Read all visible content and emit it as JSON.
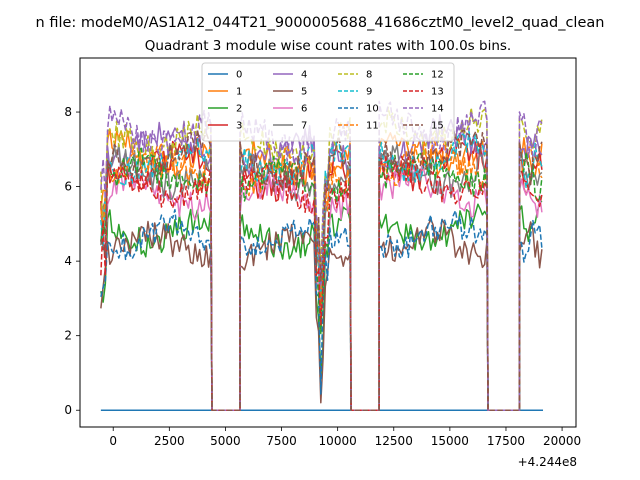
{
  "chart_data": {
    "type": "line",
    "suptitle": "n file: modeM0/AS1A12_044T21_9000005688_41686cztM0_level2_quad_clean",
    "title": "Quadrant 3 module wise count rates with 100.0s bins.",
    "xlabel": "",
    "ylabel": "",
    "x_offset_label": "+4.244e8",
    "xlim": [
      -1480,
      20620
    ],
    "ylim": [
      -0.45,
      9.45
    ],
    "x_ticks": [
      0,
      2500,
      5000,
      7500,
      10000,
      12500,
      15000,
      17500,
      20000
    ],
    "x_tick_labels": [
      "0",
      "2500",
      "5000",
      "7500",
      "10000",
      "12500",
      "15000",
      "17500",
      "20000"
    ],
    "y_ticks": [
      0,
      2,
      4,
      6,
      8
    ],
    "y_tick_labels": [
      "0",
      "2",
      "4",
      "6",
      "8"
    ],
    "grid": false,
    "legend": {
      "placement": "top-center",
      "columns": 4
    },
    "x_range": [
      -550,
      19150
    ],
    "gaps": [
      [
        4400,
        5650
      ],
      [
        10600,
        11850
      ],
      [
        16700,
        18100
      ]
    ],
    "series": [
      {
        "name": "0",
        "color": "#1f77b4",
        "style": "solid",
        "segments": [
          [
            -550,
            19150,
            0
          ]
        ]
      },
      {
        "name": "1",
        "color": "#ff7f0e",
        "style": "solid",
        "segments": [
          [
            -550,
            4400,
            6.9
          ],
          [
            5650,
            10600,
            6.6
          ],
          [
            11850,
            16700,
            6.9
          ],
          [
            18100,
            19150,
            6.8
          ]
        ]
      },
      {
        "name": "2",
        "color": "#2ca02c",
        "style": "solid",
        "segments": [
          [
            -550,
            4400,
            4.8
          ],
          [
            5650,
            10600,
            4.7
          ],
          [
            11850,
            16700,
            4.9
          ],
          [
            18100,
            19150,
            4.9
          ]
        ]
      },
      {
        "name": "3",
        "color": "#d62728",
        "style": "solid",
        "segments": [
          [
            -550,
            4400,
            6.6
          ],
          [
            5650,
            10600,
            6.3
          ],
          [
            11850,
            16700,
            6.6
          ],
          [
            18100,
            19150,
            6.5
          ]
        ]
      },
      {
        "name": "4",
        "color": "#9467bd",
        "style": "solid",
        "segments": [
          [
            -550,
            4400,
            7.1
          ],
          [
            5650,
            10600,
            6.9
          ],
          [
            11850,
            16700,
            7.2
          ],
          [
            18100,
            19150,
            7.0
          ]
        ]
      },
      {
        "name": "5",
        "color": "#8c564b",
        "style": "solid",
        "segments": [
          [
            -550,
            4400,
            4.4
          ],
          [
            5650,
            10600,
            4.3
          ],
          [
            11850,
            16700,
            4.5
          ],
          [
            18100,
            19150,
            4.4
          ]
        ]
      },
      {
        "name": "6",
        "color": "#e377c2",
        "style": "solid",
        "segments": [
          [
            -550,
            4400,
            5.8
          ],
          [
            5650,
            10600,
            5.7
          ],
          [
            11850,
            16700,
            5.9
          ],
          [
            18100,
            19150,
            5.8
          ]
        ]
      },
      {
        "name": "7",
        "color": "#7f7f7f",
        "style": "solid",
        "segments": [
          [
            -550,
            4400,
            6.4
          ],
          [
            5650,
            10600,
            6.2
          ],
          [
            11850,
            16700,
            6.4
          ],
          [
            18100,
            19150,
            6.3
          ]
        ]
      },
      {
        "name": "8",
        "color": "#bcbd22",
        "style": "dashed",
        "segments": [
          [
            -550,
            4400,
            7.3
          ],
          [
            5650,
            10600,
            7.1
          ],
          [
            11850,
            16700,
            7.5
          ],
          [
            18100,
            19150,
            7.3
          ]
        ]
      },
      {
        "name": "9",
        "color": "#17becf",
        "style": "dashed",
        "segments": [
          [
            -550,
            4400,
            6.7
          ],
          [
            5650,
            10600,
            6.6
          ],
          [
            11850,
            16700,
            6.8
          ],
          [
            18100,
            19150,
            6.7
          ]
        ]
      },
      {
        "name": "10",
        "color": "#1f77b4",
        "style": "dashed",
        "segments": [
          [
            -550,
            4400,
            4.7
          ],
          [
            5650,
            10600,
            4.6
          ],
          [
            11850,
            16700,
            4.7
          ],
          [
            18100,
            19150,
            4.6
          ]
        ]
      },
      {
        "name": "11",
        "color": "#ff7f0e",
        "style": "dashed",
        "segments": [
          [
            -550,
            4400,
            6.5
          ],
          [
            5650,
            10600,
            6.4
          ],
          [
            11850,
            16700,
            6.6
          ],
          [
            18100,
            19150,
            6.5
          ]
        ]
      },
      {
        "name": "12",
        "color": "#2ca02c",
        "style": "dashed",
        "segments": [
          [
            -550,
            4400,
            6.3
          ],
          [
            5650,
            10600,
            6.1
          ],
          [
            11850,
            16700,
            6.4
          ],
          [
            18100,
            19150,
            6.2
          ]
        ]
      },
      {
        "name": "13",
        "color": "#d62728",
        "style": "dashed",
        "segments": [
          [
            -550,
            4400,
            6.0
          ],
          [
            5650,
            10600,
            5.9
          ],
          [
            11850,
            16700,
            6.1
          ],
          [
            18100,
            19150,
            6.0
          ]
        ]
      },
      {
        "name": "14",
        "color": "#9467bd",
        "style": "dashed",
        "segments": [
          [
            -550,
            4400,
            7.5
          ],
          [
            5650,
            10600,
            7.3
          ],
          [
            11850,
            16700,
            7.6
          ],
          [
            18100,
            19150,
            7.4
          ]
        ]
      },
      {
        "name": "15",
        "color": "#8c564b",
        "style": "dashed",
        "segments": [
          [
            -550,
            4400,
            6.8
          ],
          [
            5650,
            10600,
            6.6
          ],
          [
            11850,
            16700,
            6.9
          ],
          [
            18100,
            19150,
            6.7
          ]
        ]
      }
    ]
  }
}
